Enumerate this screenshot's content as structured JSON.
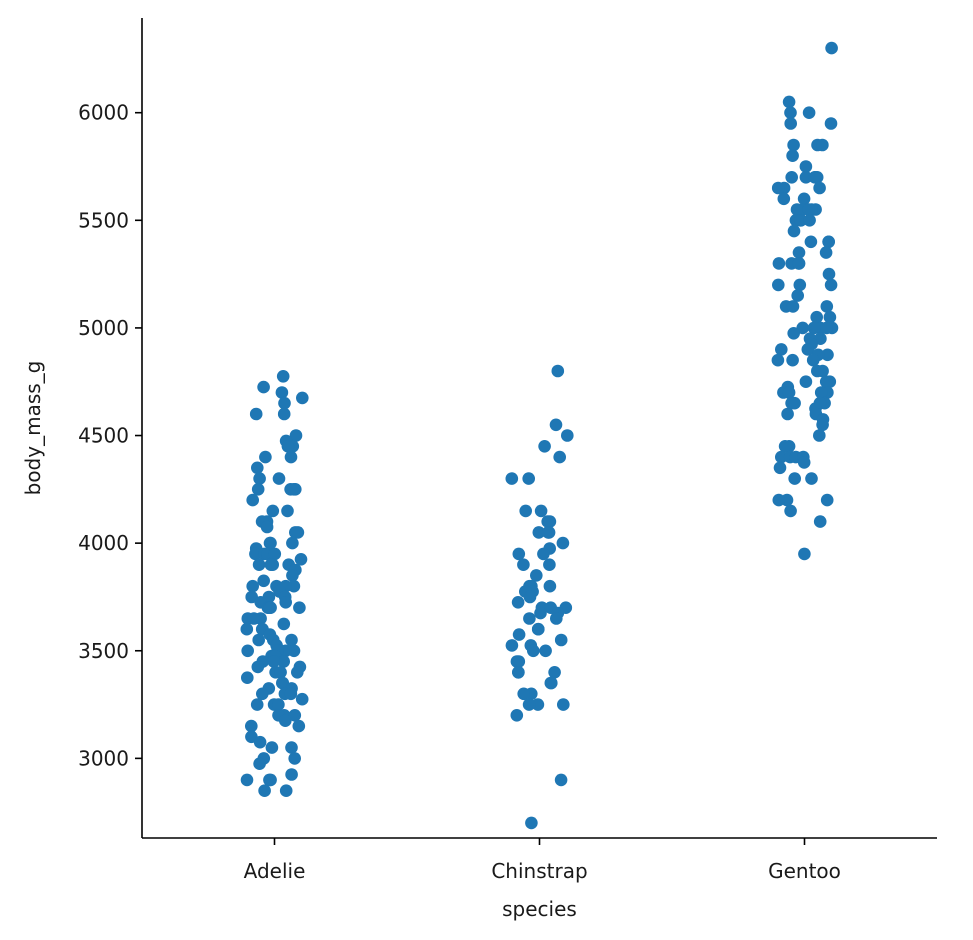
{
  "chart_data": {
    "type": "scatter",
    "subtype": "strip",
    "title": "",
    "xlabel": "species",
    "ylabel": "body_mass_g",
    "categories": [
      "Adelie",
      "Chinstrap",
      "Gentoo"
    ],
    "yticks": [
      "3000",
      "3500",
      "4000",
      "4500",
      "5000",
      "5500",
      "6000"
    ],
    "ylim": [
      2630,
      6440
    ],
    "grid": false,
    "legend": "none",
    "point_color": "#1f77b4",
    "series": [
      {
        "category": "Adelie",
        "values": [
          4775,
          4725,
          4700,
          4675,
          4650,
          4600,
          4600,
          4500,
          4475,
          4450,
          4450,
          4400,
          4400,
          4350,
          4300,
          4300,
          4250,
          4250,
          4250,
          4250,
          4200,
          4150,
          4150,
          4100,
          4100,
          4075,
          4050,
          4050,
          4000,
          4000,
          4000,
          3975,
          3950,
          3950,
          3950,
          3950,
          3925,
          3900,
          3900,
          3900,
          3900,
          3875,
          3850,
          3825,
          3800,
          3800,
          3800,
          3800,
          3775,
          3750,
          3750,
          3750,
          3725,
          3725,
          3700,
          3700,
          3700,
          3700,
          3700,
          3650,
          3650,
          3650,
          3625,
          3600,
          3600,
          3600,
          3575,
          3550,
          3550,
          3550,
          3525,
          3500,
          3500,
          3500,
          3500,
          3500,
          3475,
          3475,
          3450,
          3450,
          3450,
          3425,
          3425,
          3400,
          3400,
          3400,
          3375,
          3350,
          3350,
          3325,
          3325,
          3300,
          3300,
          3300,
          3275,
          3250,
          3250,
          3250,
          3200,
          3200,
          3200,
          3175,
          3150,
          3150,
          3100,
          3075,
          3050,
          3050,
          3000,
          3000,
          2975,
          2925,
          2900,
          2900,
          2900,
          2850,
          2850
        ]
      },
      {
        "category": "Chinstrap",
        "values": [
          4800,
          4550,
          4500,
          4450,
          4400,
          4300,
          4300,
          4150,
          4150,
          4100,
          4100,
          4050,
          4050,
          4050,
          4000,
          3975,
          3950,
          3950,
          3900,
          3900,
          3850,
          3800,
          3800,
          3800,
          3775,
          3775,
          3750,
          3725,
          3700,
          3700,
          3700,
          3675,
          3675,
          3650,
          3650,
          3600,
          3600,
          3575,
          3550,
          3525,
          3525,
          3500,
          3500,
          3450,
          3450,
          3400,
          3400,
          3400,
          3350,
          3350,
          3300,
          3300,
          3250,
          3250,
          3250,
          3200,
          2900,
          2700
        ]
      },
      {
        "category": "Gentoo",
        "values": [
          6300,
          6050,
          6000,
          6000,
          5950,
          5950,
          5850,
          5850,
          5850,
          5800,
          5750,
          5700,
          5700,
          5700,
          5700,
          5700,
          5650,
          5650,
          5650,
          5600,
          5600,
          5550,
          5550,
          5550,
          5550,
          5550,
          5500,
          5500,
          5500,
          5500,
          5450,
          5400,
          5400,
          5400,
          5350,
          5350,
          5300,
          5300,
          5300,
          5300,
          5250,
          5200,
          5200,
          5200,
          5150,
          5100,
          5100,
          5100,
          5050,
          5050,
          5000,
          5000,
          5000,
          5000,
          5000,
          4975,
          4950,
          4950,
          4925,
          4900,
          4900,
          4875,
          4875,
          4850,
          4850,
          4850,
          4800,
          4800,
          4750,
          4750,
          4750,
          4725,
          4700,
          4700,
          4700,
          4700,
          4650,
          4650,
          4650,
          4650,
          4625,
          4600,
          4600,
          4575,
          4550,
          4500,
          4450,
          4450,
          4400,
          4400,
          4400,
          4400,
          4375,
          4350,
          4300,
          4300,
          4200,
          4200,
          4200,
          4150,
          4100,
          3950
        ]
      }
    ]
  }
}
